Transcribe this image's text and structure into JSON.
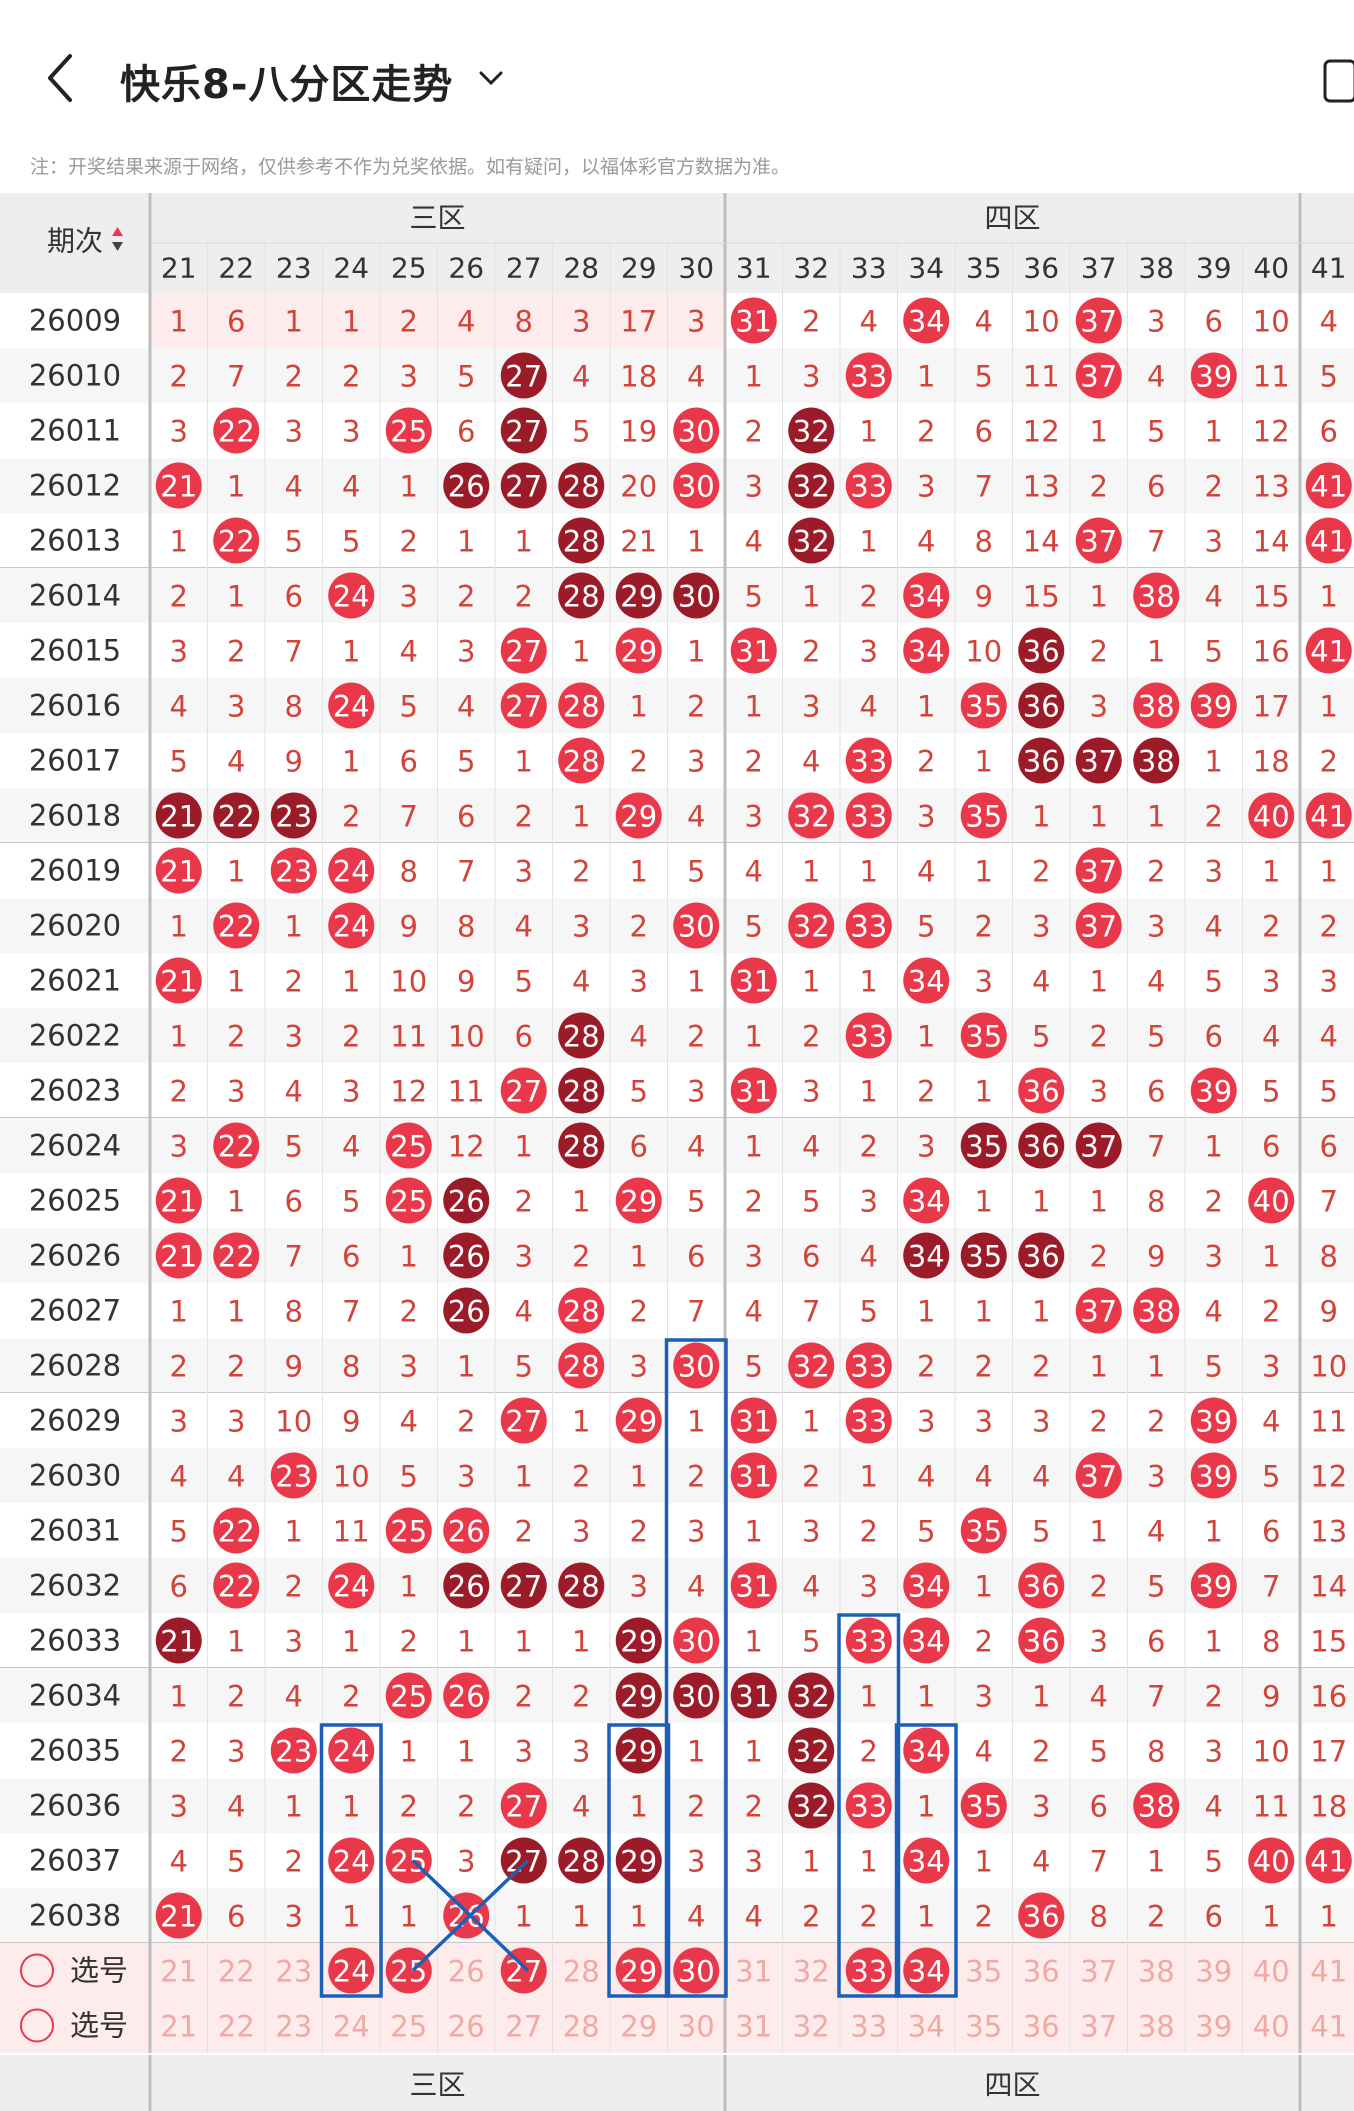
{
  "header": {
    "title": "快乐8-八分区走势",
    "note": "注：开奖结果来源于网络，仅供参考不作为兑奖依据。如有疑问，以福体彩官方数据为准。"
  },
  "table": {
    "period_header": "期次",
    "zones": [
      {
        "label": "三区",
        "from": 21,
        "to": 30
      },
      {
        "label": "四区",
        "from": 31,
        "to": 40
      }
    ],
    "columns": [
      21,
      22,
      23,
      24,
      25,
      26,
      27,
      28,
      29,
      30,
      31,
      32,
      33,
      34,
      35,
      36,
      37,
      38,
      39,
      40,
      41
    ],
    "rows": [
      {
        "period": "26009",
        "cells": [
          1,
          6,
          1,
          1,
          2,
          4,
          8,
          3,
          17,
          3,
          "31r",
          2,
          4,
          "34r",
          4,
          10,
          "37r",
          3,
          6,
          10,
          4
        ]
      },
      {
        "period": "26010",
        "cells": [
          2,
          7,
          2,
          2,
          3,
          5,
          "27d",
          4,
          18,
          4,
          1,
          3,
          "33r",
          1,
          5,
          11,
          "37r",
          4,
          "39r",
          11,
          5
        ]
      },
      {
        "period": "26011",
        "cells": [
          3,
          "22r",
          3,
          3,
          "25r",
          6,
          "27d",
          5,
          19,
          "30r",
          2,
          "32d",
          1,
          2,
          6,
          12,
          1,
          5,
          1,
          12,
          6
        ]
      },
      {
        "period": "26012",
        "cells": [
          "21r",
          1,
          4,
          4,
          1,
          "26d",
          "27d",
          "28d",
          20,
          "30r",
          3,
          "32d",
          "33r",
          3,
          7,
          13,
          2,
          6,
          2,
          13,
          "41r"
        ]
      },
      {
        "period": "26013",
        "cells": [
          1,
          "22r",
          5,
          5,
          2,
          1,
          1,
          "28d",
          21,
          1,
          4,
          "32d",
          1,
          4,
          8,
          14,
          "37r",
          7,
          3,
          14,
          "41r"
        ]
      },
      {
        "period": "26014",
        "cells": [
          2,
          1,
          6,
          "24r",
          3,
          2,
          2,
          "28d",
          "29d",
          "30d",
          5,
          1,
          2,
          "34r",
          9,
          15,
          1,
          "38r",
          4,
          15,
          1
        ]
      },
      {
        "period": "26015",
        "cells": [
          3,
          2,
          7,
          1,
          4,
          3,
          "27r",
          1,
          "29r",
          1,
          "31r",
          2,
          3,
          "34r",
          10,
          "36d",
          2,
          1,
          5,
          16,
          "41r"
        ]
      },
      {
        "period": "26016",
        "cells": [
          4,
          3,
          8,
          "24r",
          5,
          4,
          "27r",
          "28r",
          1,
          2,
          1,
          3,
          4,
          1,
          "35r",
          "36d",
          3,
          "38r",
          "39r",
          17,
          1
        ]
      },
      {
        "period": "26017",
        "cells": [
          5,
          4,
          9,
          1,
          6,
          5,
          1,
          "28r",
          2,
          3,
          2,
          4,
          "33r",
          2,
          1,
          "36d",
          "37d",
          "38d",
          1,
          18,
          2
        ]
      },
      {
        "period": "26018",
        "cells": [
          "21d",
          "22d",
          "23d",
          2,
          7,
          6,
          2,
          1,
          "29r",
          4,
          3,
          "32r",
          "33r",
          3,
          "35r",
          1,
          1,
          1,
          2,
          "40r",
          "41r"
        ]
      },
      {
        "period": "26019",
        "cells": [
          "21r",
          1,
          "23r",
          "24r",
          8,
          7,
          3,
          2,
          1,
          5,
          4,
          1,
          1,
          4,
          1,
          2,
          "37r",
          2,
          3,
          1,
          1
        ]
      },
      {
        "period": "26020",
        "cells": [
          1,
          "22r",
          1,
          "24r",
          9,
          8,
          4,
          3,
          2,
          "30r",
          5,
          "32r",
          "33r",
          5,
          2,
          3,
          "37r",
          3,
          4,
          2,
          2
        ]
      },
      {
        "period": "26021",
        "cells": [
          "21r",
          1,
          2,
          1,
          10,
          9,
          5,
          4,
          3,
          1,
          "31r",
          1,
          1,
          "34r",
          3,
          4,
          1,
          4,
          5,
          3,
          3
        ]
      },
      {
        "period": "26022",
        "cells": [
          1,
          2,
          3,
          2,
          11,
          10,
          6,
          "28d",
          4,
          2,
          1,
          2,
          "33r",
          1,
          "35r",
          5,
          2,
          5,
          6,
          4,
          4
        ]
      },
      {
        "period": "26023",
        "cells": [
          2,
          3,
          4,
          3,
          12,
          11,
          "27r",
          "28d",
          5,
          3,
          "31r",
          3,
          1,
          2,
          1,
          "36r",
          3,
          6,
          "39r",
          5,
          5
        ]
      },
      {
        "period": "26024",
        "cells": [
          3,
          "22r",
          5,
          4,
          "25r",
          12,
          1,
          "28d",
          6,
          4,
          1,
          4,
          2,
          3,
          "35d",
          "36d",
          "37d",
          7,
          1,
          6,
          6
        ]
      },
      {
        "period": "26025",
        "cells": [
          "21r",
          1,
          6,
          5,
          "25r",
          "26d",
          2,
          1,
          "29r",
          5,
          2,
          5,
          3,
          "34r",
          1,
          1,
          1,
          8,
          2,
          "40r",
          7
        ]
      },
      {
        "period": "26026",
        "cells": [
          "21r",
          "22r",
          7,
          6,
          1,
          "26d",
          3,
          2,
          1,
          6,
          3,
          6,
          4,
          "34d",
          "35d",
          "36d",
          2,
          9,
          3,
          1,
          8
        ]
      },
      {
        "period": "26027",
        "cells": [
          1,
          1,
          8,
          7,
          2,
          "26d",
          4,
          "28r",
          2,
          7,
          4,
          7,
          5,
          1,
          1,
          1,
          "37r",
          "38r",
          4,
          2,
          9
        ]
      },
      {
        "period": "26028",
        "cells": [
          2,
          2,
          9,
          8,
          3,
          1,
          5,
          "28r",
          3,
          "30r",
          5,
          "32r",
          "33r",
          2,
          2,
          2,
          1,
          1,
          5,
          3,
          10
        ]
      },
      {
        "period": "26029",
        "cells": [
          3,
          3,
          10,
          9,
          4,
          2,
          "27r",
          1,
          "29r",
          1,
          "31r",
          1,
          "33r",
          3,
          3,
          3,
          2,
          2,
          "39r",
          4,
          11
        ]
      },
      {
        "period": "26030",
        "cells": [
          4,
          4,
          "23r",
          10,
          5,
          3,
          1,
          2,
          1,
          2,
          "31r",
          2,
          1,
          4,
          4,
          4,
          "37r",
          3,
          "39r",
          5,
          12
        ]
      },
      {
        "period": "26031",
        "cells": [
          5,
          "22r",
          1,
          11,
          "25r",
          "26r",
          2,
          3,
          2,
          3,
          1,
          3,
          2,
          5,
          "35r",
          5,
          1,
          4,
          1,
          6,
          13
        ]
      },
      {
        "period": "26032",
        "cells": [
          6,
          "22r",
          2,
          "24r",
          1,
          "26d",
          "27d",
          "28d",
          3,
          4,
          "31r",
          4,
          3,
          "34r",
          1,
          "36r",
          2,
          5,
          "39r",
          7,
          14
        ]
      },
      {
        "period": "26033",
        "cells": [
          "21d",
          1,
          3,
          1,
          2,
          1,
          1,
          1,
          "29d",
          "30r",
          1,
          5,
          "33r",
          "34r",
          2,
          "36r",
          3,
          6,
          1,
          8,
          15
        ]
      },
      {
        "period": "26034",
        "cells": [
          1,
          2,
          4,
          2,
          "25r",
          "26r",
          2,
          2,
          "29d",
          "30d",
          "31d",
          "32d",
          1,
          1,
          3,
          1,
          4,
          7,
          2,
          9,
          16
        ]
      },
      {
        "period": "26035",
        "cells": [
          2,
          3,
          "23r",
          "24r",
          1,
          1,
          3,
          3,
          "29d",
          1,
          1,
          "32d",
          2,
          "34r",
          4,
          2,
          5,
          8,
          3,
          10,
          17
        ]
      },
      {
        "period": "26036",
        "cells": [
          3,
          4,
          1,
          1,
          2,
          2,
          "27r",
          4,
          1,
          2,
          2,
          "32d",
          "33r",
          1,
          "35r",
          3,
          6,
          "38r",
          4,
          11,
          18
        ]
      },
      {
        "period": "26037",
        "cells": [
          4,
          5,
          2,
          "24r",
          "25r",
          3,
          "27d",
          "28d",
          "29d",
          3,
          3,
          1,
          1,
          "34r",
          1,
          4,
          7,
          1,
          5,
          "40r",
          "41r"
        ]
      },
      {
        "period": "26038",
        "cells": [
          "21r",
          6,
          3,
          1,
          1,
          "26r",
          1,
          1,
          1,
          4,
          4,
          2,
          2,
          1,
          2,
          "36r",
          8,
          2,
          6,
          1,
          1
        ]
      }
    ],
    "select_rows": [
      {
        "label": "选号",
        "picked": [
          24,
          25,
          27,
          29,
          30,
          33,
          34
        ]
      },
      {
        "label": "选号",
        "picked": []
      }
    ]
  },
  "colors": {
    "red_ball": "#e8384a",
    "dark_ball": "#9b1c28",
    "miss_text": "#d2433a",
    "header_bg": "#eeeeee",
    "pink_row": "#fdeceb",
    "annotation_blue": "#1c5fb7"
  }
}
